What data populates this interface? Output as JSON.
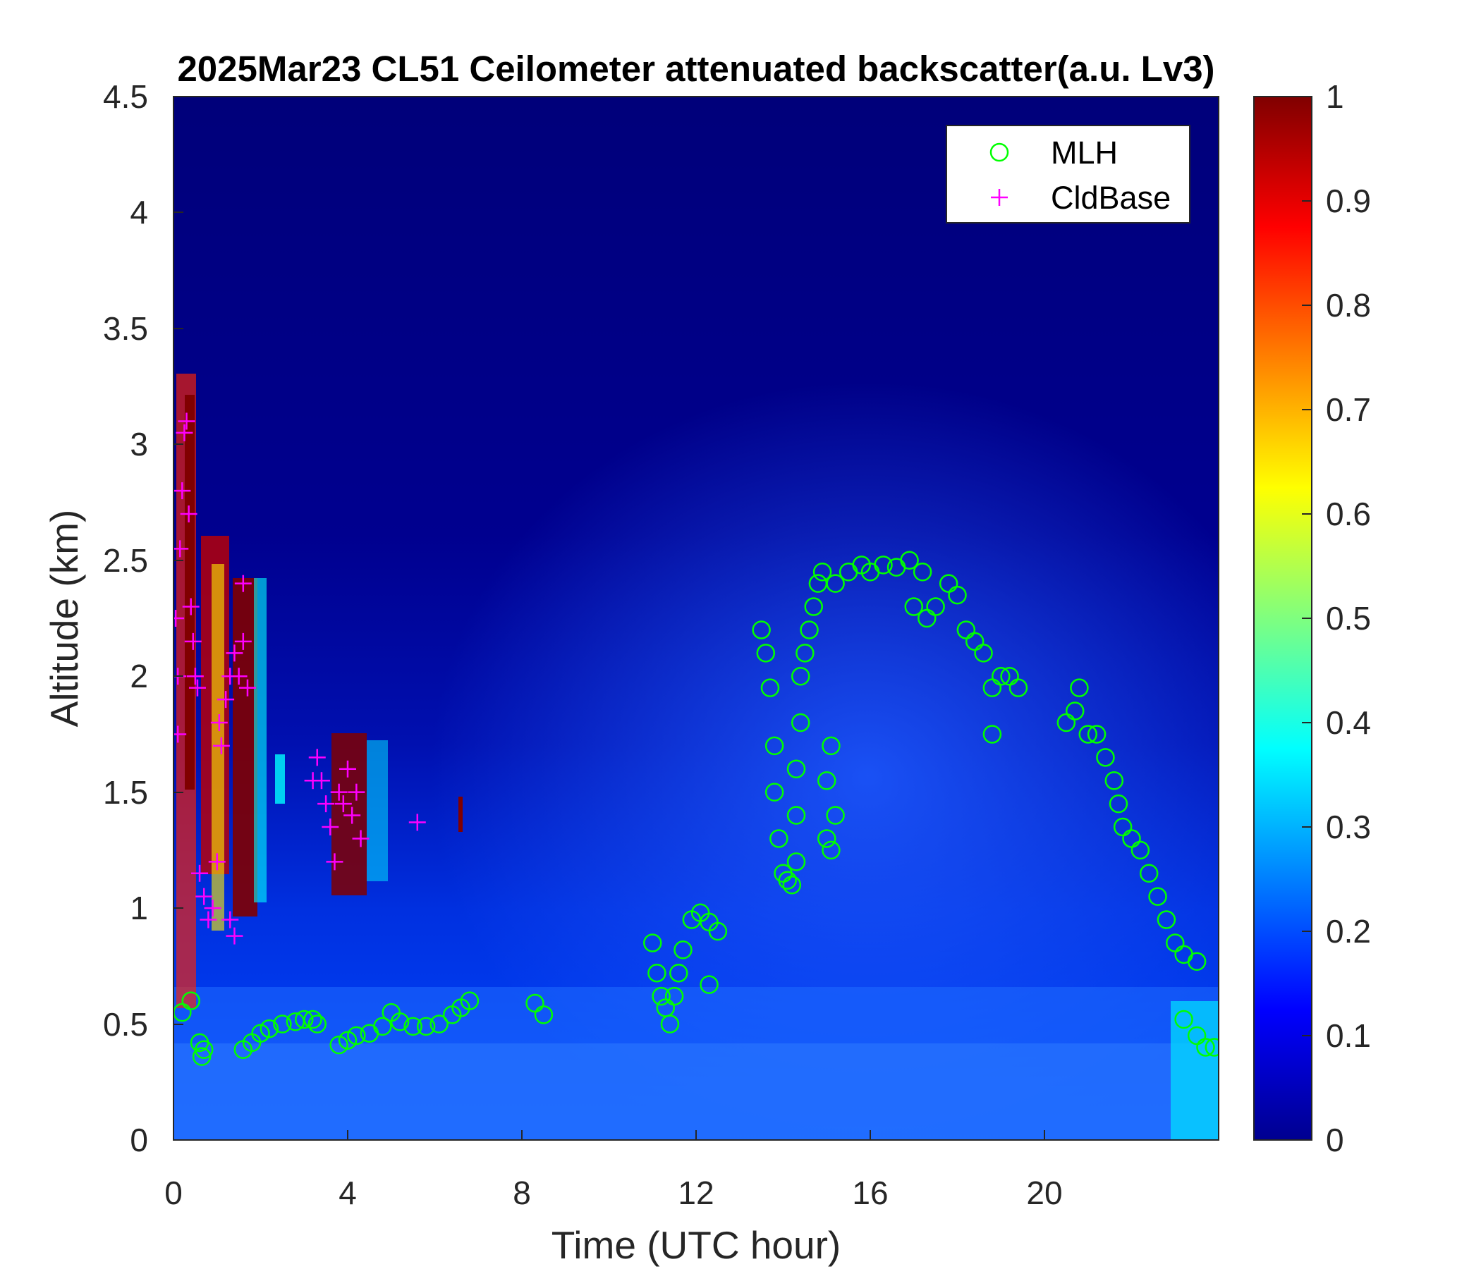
{
  "chart_data": {
    "type": "heatmap",
    "title": "2025Mar23 CL51 Ceilometer attenuated backscatter(a.u. Lv3)",
    "xlabel": "Time (UTC hour)",
    "ylabel": "Altitude (km)",
    "xlim": [
      0,
      24
    ],
    "ylim": [
      0,
      4.5
    ],
    "xticks": [
      "0",
      "4",
      "8",
      "12",
      "16",
      "20"
    ],
    "yticks": [
      "0",
      "0.5",
      "1",
      "1.5",
      "2",
      "2.5",
      "3",
      "3.5",
      "4",
      "4.5"
    ],
    "colorbar": {
      "colormap": "jet",
      "range": [
        0,
        1
      ],
      "ticks": [
        "0",
        "0.1",
        "0.2",
        "0.3",
        "0.4",
        "0.5",
        "0.6",
        "0.7",
        "0.8",
        "0.9",
        "1"
      ]
    },
    "legend": {
      "placement": "top-right",
      "entries": [
        {
          "name": "MLH",
          "marker": "circle",
          "color": "#00ff00"
        },
        {
          "name": "CldBase",
          "marker": "plus",
          "color": "#ff00ff"
        }
      ]
    },
    "series": [
      {
        "name": "MLH",
        "marker": "circle",
        "color": "#00ff00",
        "points": [
          [
            0.2,
            0.55
          ],
          [
            0.4,
            0.6
          ],
          [
            0.6,
            0.42
          ],
          [
            0.7,
            0.39
          ],
          [
            0.65,
            0.36
          ],
          [
            1.6,
            0.39
          ],
          [
            1.8,
            0.42
          ],
          [
            2.0,
            0.46
          ],
          [
            2.2,
            0.48
          ],
          [
            2.5,
            0.5
          ],
          [
            2.8,
            0.51
          ],
          [
            3.0,
            0.52
          ],
          [
            3.2,
            0.52
          ],
          [
            3.3,
            0.5
          ],
          [
            3.8,
            0.41
          ],
          [
            4.0,
            0.43
          ],
          [
            4.2,
            0.45
          ],
          [
            4.5,
            0.46
          ],
          [
            4.8,
            0.49
          ],
          [
            5.0,
            0.55
          ],
          [
            5.2,
            0.51
          ],
          [
            5.5,
            0.49
          ],
          [
            5.8,
            0.49
          ],
          [
            6.1,
            0.5
          ],
          [
            6.4,
            0.54
          ],
          [
            6.6,
            0.57
          ],
          [
            6.8,
            0.6
          ],
          [
            8.3,
            0.59
          ],
          [
            8.5,
            0.54
          ],
          [
            11.0,
            0.85
          ],
          [
            11.1,
            0.72
          ],
          [
            11.2,
            0.62
          ],
          [
            11.3,
            0.57
          ],
          [
            11.4,
            0.5
          ],
          [
            11.5,
            0.62
          ],
          [
            11.6,
            0.72
          ],
          [
            11.7,
            0.82
          ],
          [
            11.9,
            0.95
          ],
          [
            12.1,
            0.98
          ],
          [
            12.3,
            0.94
          ],
          [
            12.5,
            0.9
          ],
          [
            12.3,
            0.67
          ],
          [
            13.5,
            2.2
          ],
          [
            13.6,
            2.1
          ],
          [
            13.7,
            1.95
          ],
          [
            13.8,
            1.7
          ],
          [
            13.8,
            1.5
          ],
          [
            13.9,
            1.3
          ],
          [
            14.0,
            1.15
          ],
          [
            14.1,
            1.12
          ],
          [
            14.2,
            1.1
          ],
          [
            14.3,
            1.2
          ],
          [
            14.3,
            1.4
          ],
          [
            14.3,
            1.6
          ],
          [
            14.4,
            1.8
          ],
          [
            14.4,
            2.0
          ],
          [
            14.5,
            2.1
          ],
          [
            14.6,
            2.2
          ],
          [
            14.7,
            2.3
          ],
          [
            14.8,
            2.4
          ],
          [
            14.9,
            2.45
          ],
          [
            15.0,
            1.3
          ],
          [
            15.0,
            1.55
          ],
          [
            15.1,
            1.7
          ],
          [
            15.1,
            1.25
          ],
          [
            15.2,
            1.4
          ],
          [
            15.2,
            2.4
          ],
          [
            15.5,
            2.45
          ],
          [
            15.8,
            2.48
          ],
          [
            16.0,
            2.45
          ],
          [
            16.3,
            2.48
          ],
          [
            16.6,
            2.47
          ],
          [
            16.9,
            2.5
          ],
          [
            17.2,
            2.45
          ],
          [
            17.0,
            2.3
          ],
          [
            17.3,
            2.25
          ],
          [
            17.5,
            2.3
          ],
          [
            17.8,
            2.4
          ],
          [
            18.0,
            2.35
          ],
          [
            18.2,
            2.2
          ],
          [
            18.4,
            2.15
          ],
          [
            18.6,
            2.1
          ],
          [
            18.8,
            1.95
          ],
          [
            18.8,
            1.75
          ],
          [
            19.0,
            2.0
          ],
          [
            19.2,
            2.0
          ],
          [
            19.4,
            1.95
          ],
          [
            20.5,
            1.8
          ],
          [
            20.7,
            1.85
          ],
          [
            20.8,
            1.95
          ],
          [
            21.0,
            1.75
          ],
          [
            21.2,
            1.75
          ],
          [
            21.4,
            1.65
          ],
          [
            21.6,
            1.55
          ],
          [
            21.7,
            1.45
          ],
          [
            21.8,
            1.35
          ],
          [
            22.0,
            1.3
          ],
          [
            22.2,
            1.25
          ],
          [
            22.4,
            1.15
          ],
          [
            22.6,
            1.05
          ],
          [
            22.8,
            0.95
          ],
          [
            23.0,
            0.85
          ],
          [
            23.2,
            0.8
          ],
          [
            23.5,
            0.77
          ],
          [
            23.2,
            0.52
          ],
          [
            23.5,
            0.45
          ],
          [
            23.7,
            0.4
          ],
          [
            23.9,
            0.4
          ]
        ]
      },
      {
        "name": "CldBase",
        "marker": "plus",
        "color": "#ff00ff",
        "points": [
          [
            0.05,
            2.25
          ],
          [
            0.1,
            2.0
          ],
          [
            0.1,
            1.75
          ],
          [
            0.15,
            2.55
          ],
          [
            0.2,
            2.8
          ],
          [
            0.25,
            3.05
          ],
          [
            0.3,
            3.1
          ],
          [
            0.35,
            2.7
          ],
          [
            0.4,
            2.3
          ],
          [
            0.45,
            2.15
          ],
          [
            0.5,
            2.0
          ],
          [
            0.55,
            1.95
          ],
          [
            0.6,
            1.15
          ],
          [
            0.7,
            1.05
          ],
          [
            0.8,
            0.95
          ],
          [
            0.9,
            1.0
          ],
          [
            1.0,
            1.2
          ],
          [
            1.05,
            1.8
          ],
          [
            1.1,
            1.7
          ],
          [
            1.2,
            1.9
          ],
          [
            1.3,
            2.0
          ],
          [
            1.4,
            2.1
          ],
          [
            1.5,
            2.0
          ],
          [
            1.6,
            2.15
          ],
          [
            1.7,
            1.95
          ],
          [
            1.6,
            2.4
          ],
          [
            1.3,
            0.95
          ],
          [
            1.4,
            0.88
          ],
          [
            3.2,
            1.55
          ],
          [
            3.3,
            1.65
          ],
          [
            3.4,
            1.55
          ],
          [
            3.5,
            1.45
          ],
          [
            3.6,
            1.35
          ],
          [
            3.7,
            1.2
          ],
          [
            3.8,
            1.5
          ],
          [
            3.9,
            1.45
          ],
          [
            4.0,
            1.6
          ],
          [
            4.1,
            1.4
          ],
          [
            4.2,
            1.5
          ],
          [
            4.3,
            1.3
          ],
          [
            5.6,
            1.37
          ]
        ]
      }
    ]
  }
}
